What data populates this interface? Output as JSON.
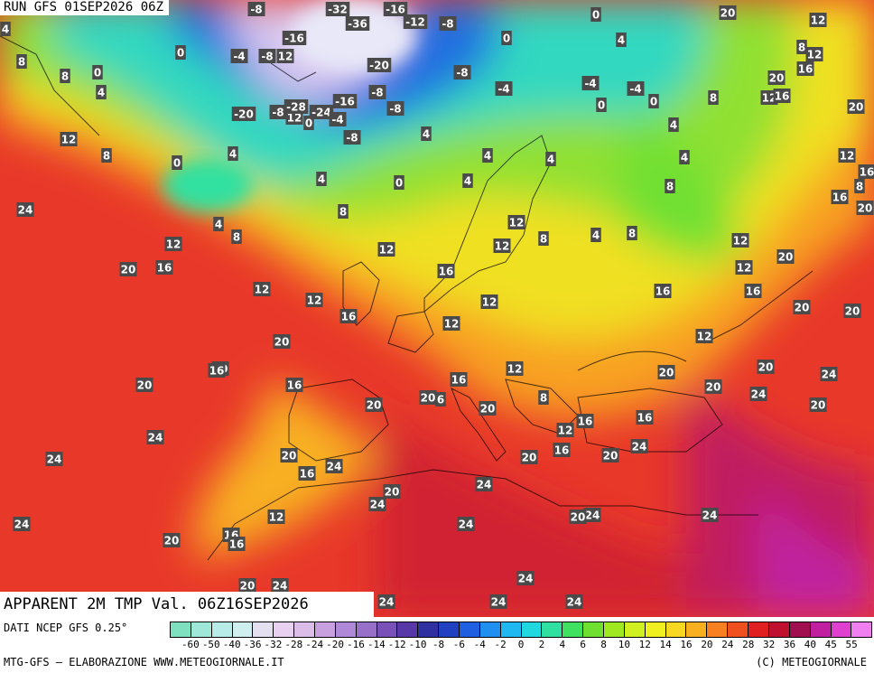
{
  "header": {
    "run": "RUN GFS 01SEP2026 06Z",
    "variable": "APPARENT 2M TMP Val. 06Z16SEP2026"
  },
  "footer": {
    "source": "DATI NCEP GFS 0.25°",
    "credit": "MTG-GFS — ELABORAZIONE WWW.METEOGIORNALE.IT",
    "copyright": "(C) METEOGIORNALE"
  },
  "legend": {
    "ticks": [
      "-60",
      "-50",
      "-40",
      "-36",
      "-32",
      "-28",
      "-24",
      "-20",
      "-16",
      "-14",
      "-12",
      "-10",
      "-8",
      "-6",
      "-4",
      "-2",
      "0",
      "2",
      "4",
      "6",
      "8",
      "10",
      "12",
      "14",
      "16",
      "20",
      "24",
      "28",
      "32",
      "36",
      "40",
      "45",
      "55"
    ],
    "colors": [
      "#7fe0c0",
      "#9fe8d8",
      "#b8ece8",
      "#d0f0f0",
      "#e4e0f0",
      "#e8d0f0",
      "#dcbce8",
      "#c8a0e0",
      "#b088d8",
      "#9870c8",
      "#7850b8",
      "#5838a8",
      "#3030a0",
      "#2040c0",
      "#2060e0",
      "#2090f0",
      "#20b8f0",
      "#20d8e0",
      "#30e0a0",
      "#40e060",
      "#70e030",
      "#a0e820",
      "#d0f020",
      "#f0f020",
      "#f8d820",
      "#f8b020",
      "#f88020",
      "#f05020",
      "#e02020",
      "#c01030",
      "#a01050",
      "#c020a0",
      "#e040d0",
      "#f080f0"
    ]
  },
  "map_labels": [
    {
      "t": "-8"
    },
    {
      "t": "-32"
    },
    {
      "t": "-16"
    },
    {
      "t": "-36"
    },
    {
      "t": "-12"
    },
    {
      "t": "-8"
    },
    {
      "t": "0"
    },
    {
      "t": "20"
    },
    {
      "t": "12"
    },
    {
      "t": "4"
    },
    {
      "t": "-16"
    },
    {
      "t": "0"
    },
    {
      "t": "4"
    },
    {
      "t": "8"
    },
    {
      "t": "12"
    },
    {
      "t": "8"
    },
    {
      "t": "-4"
    },
    {
      "t": "-8"
    },
    {
      "t": "12"
    },
    {
      "t": "0"
    },
    {
      "t": "-20"
    },
    {
      "t": "-8"
    },
    {
      "t": "20"
    },
    {
      "t": "16"
    },
    {
      "t": "8"
    },
    {
      "t": "0"
    },
    {
      "t": "4"
    },
    {
      "t": "-8"
    },
    {
      "t": "-4"
    },
    {
      "t": "-4"
    },
    {
      "t": "-4"
    },
    {
      "t": "0"
    },
    {
      "t": "0"
    },
    {
      "t": "8"
    },
    {
      "t": "12"
    },
    {
      "t": "16"
    },
    {
      "t": "-20"
    },
    {
      "t": "-8"
    },
    {
      "t": "12"
    },
    {
      "t": "-28"
    },
    {
      "t": "-24"
    },
    {
      "t": "-16"
    },
    {
      "t": "-4"
    },
    {
      "t": "0"
    },
    {
      "t": "-8"
    },
    {
      "t": "4"
    },
    {
      "t": "20"
    },
    {
      "t": "12"
    },
    {
      "t": "-8"
    },
    {
      "t": "4"
    },
    {
      "t": "4"
    },
    {
      "t": "12"
    },
    {
      "t": "8"
    },
    {
      "t": "0"
    },
    {
      "t": "4"
    },
    {
      "t": "4"
    },
    {
      "t": "4"
    },
    {
      "t": "4"
    },
    {
      "t": "16"
    },
    {
      "t": "4"
    },
    {
      "t": "8"
    },
    {
      "t": "0"
    },
    {
      "t": "8"
    },
    {
      "t": "16"
    },
    {
      "t": "20"
    },
    {
      "t": "24"
    },
    {
      "t": "8"
    },
    {
      "t": "4"
    },
    {
      "t": "8"
    },
    {
      "t": "12"
    },
    {
      "t": "12"
    },
    {
      "t": "8"
    },
    {
      "t": "4"
    },
    {
      "t": "8"
    },
    {
      "t": "12"
    },
    {
      "t": "12"
    },
    {
      "t": "12"
    },
    {
      "t": "20"
    },
    {
      "t": "16"
    },
    {
      "t": "16"
    },
    {
      "t": "12"
    },
    {
      "t": "20"
    },
    {
      "t": "12"
    },
    {
      "t": "12"
    },
    {
      "t": "12"
    },
    {
      "t": "16"
    },
    {
      "t": "16"
    },
    {
      "t": "12"
    },
    {
      "t": "20"
    },
    {
      "t": "20"
    },
    {
      "t": "20"
    },
    {
      "t": "12"
    },
    {
      "t": "16"
    },
    {
      "t": "20"
    },
    {
      "t": "16"
    },
    {
      "t": "16"
    },
    {
      "t": "20"
    },
    {
      "t": "20"
    },
    {
      "t": "12"
    },
    {
      "t": "16"
    },
    {
      "t": "20"
    },
    {
      "t": "24"
    },
    {
      "t": "20"
    },
    {
      "t": "20"
    },
    {
      "t": "20"
    },
    {
      "t": "6"
    },
    {
      "t": "20"
    },
    {
      "t": "8"
    },
    {
      "t": "20"
    },
    {
      "t": "16"
    },
    {
      "t": "24"
    },
    {
      "t": "24"
    },
    {
      "t": "12"
    },
    {
      "t": "16"
    },
    {
      "t": "16"
    },
    {
      "t": "24"
    },
    {
      "t": "20"
    },
    {
      "t": "24"
    },
    {
      "t": "20"
    },
    {
      "t": "24"
    },
    {
      "t": "20"
    },
    {
      "t": "24"
    },
    {
      "t": "16"
    },
    {
      "t": "20"
    },
    {
      "t": "24"
    },
    {
      "t": "24"
    },
    {
      "t": "12"
    },
    {
      "t": "24"
    },
    {
      "t": "20"
    },
    {
      "t": "24"
    },
    {
      "t": "24"
    },
    {
      "t": "20"
    },
    {
      "t": "16"
    },
    {
      "t": "16"
    },
    {
      "t": "20"
    },
    {
      "t": "24"
    },
    {
      "t": "24"
    },
    {
      "t": "24"
    },
    {
      "t": "24"
    },
    {
      "t": "24"
    }
  ]
}
